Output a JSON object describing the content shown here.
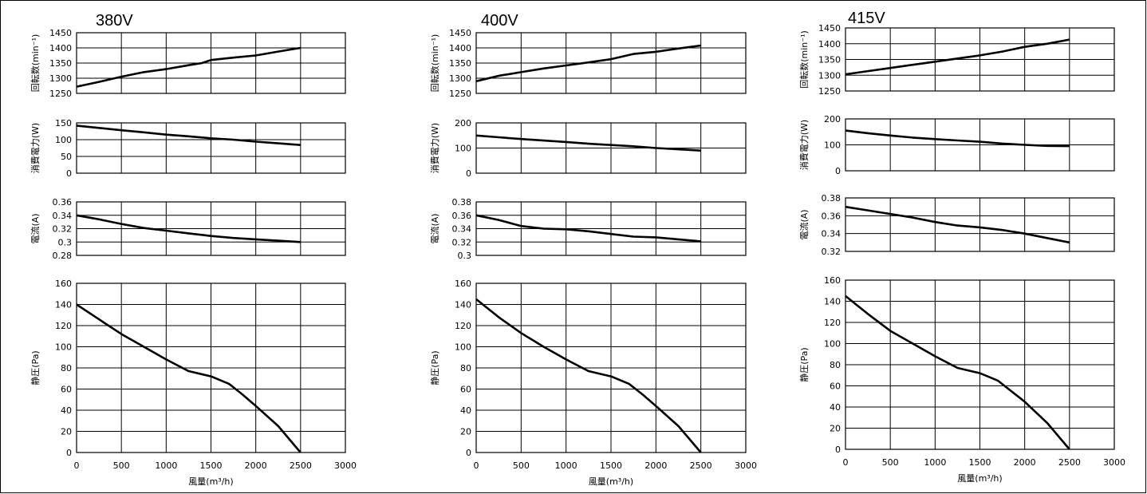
{
  "chart_data": [
    {
      "title": "380V",
      "type": "line",
      "xlabel": "風量(m³/h)",
      "xlim": [
        0,
        3000
      ],
      "xticks": [
        "0",
        "500",
        "1000",
        "1500",
        "2000",
        "2500",
        "3000"
      ],
      "subplots": [
        {
          "ylabel": "回転数(min⁻¹)",
          "ylim": [
            1250,
            1450
          ],
          "yticks": [
            "1250",
            "1300",
            "1350",
            "1400",
            "1450"
          ],
          "x": [
            0,
            250,
            500,
            750,
            1000,
            1250,
            1400,
            1500,
            1750,
            2000,
            2250,
            2500
          ],
          "y": [
            1272,
            1288,
            1305,
            1320,
            1330,
            1343,
            1350,
            1360,
            1368,
            1375,
            1388,
            1400
          ]
        },
        {
          "ylabel": "消費電力(W)",
          "ylim": [
            0,
            150
          ],
          "yticks": [
            "0",
            "50",
            "100",
            "150"
          ],
          "x": [
            0,
            250,
            500,
            750,
            1000,
            1250,
            1500,
            1750,
            2000,
            2250,
            2500
          ],
          "y": [
            142,
            135,
            128,
            122,
            115,
            110,
            104,
            100,
            94,
            89,
            84
          ]
        },
        {
          "ylabel": "電流(A)",
          "ylim": [
            0.28,
            0.36
          ],
          "yticks": [
            "0.28",
            "0.3",
            "0.32",
            "0.34",
            "0.36"
          ],
          "x": [
            0,
            250,
            500,
            750,
            1000,
            1250,
            1500,
            1750,
            2000,
            2250,
            2500
          ],
          "y": [
            0.34,
            0.334,
            0.327,
            0.321,
            0.317,
            0.313,
            0.309,
            0.306,
            0.304,
            0.302,
            0.3
          ]
        },
        {
          "ylabel": "静圧(Pa)",
          "ylim": [
            0,
            160
          ],
          "yticks": [
            "0",
            "20",
            "40",
            "60",
            "80",
            "100",
            "120",
            "140",
            "160"
          ],
          "x": [
            0,
            250,
            500,
            750,
            1000,
            1250,
            1500,
            1700,
            1850,
            2000,
            2250,
            2500
          ],
          "y": [
            140,
            126,
            112,
            100,
            88,
            77,
            72,
            65,
            55,
            44,
            25,
            0
          ]
        }
      ]
    },
    {
      "title": "400V",
      "type": "line",
      "xlabel": "風量(m³/h)",
      "xlim": [
        0,
        3000
      ],
      "xticks": [
        "0",
        "500",
        "1000",
        "1500",
        "2000",
        "2500",
        "3000"
      ],
      "subplots": [
        {
          "ylabel": "回転数(min⁻¹)",
          "ylim": [
            1250,
            1450
          ],
          "yticks": [
            "1250",
            "1300",
            "1350",
            "1400",
            "1450"
          ],
          "x": [
            0,
            250,
            500,
            750,
            1000,
            1250,
            1500,
            1750,
            2000,
            2250,
            2500
          ],
          "y": [
            1290,
            1308,
            1320,
            1332,
            1342,
            1352,
            1363,
            1380,
            1387,
            1398,
            1408
          ]
        },
        {
          "ylabel": "消費電力(W)",
          "ylim": [
            0,
            200
          ],
          "yticks": [
            "0",
            "100",
            "200"
          ],
          "x": [
            0,
            250,
            500,
            750,
            1000,
            1250,
            1500,
            1750,
            2000,
            2250,
            2500
          ],
          "y": [
            150,
            143,
            136,
            130,
            124,
            117,
            112,
            107,
            100,
            95,
            90
          ]
        },
        {
          "ylabel": "電流(A)",
          "ylim": [
            0.3,
            0.38
          ],
          "yticks": [
            "0.3",
            "0.32",
            "0.34",
            "0.36",
            "0.38"
          ],
          "x": [
            0,
            250,
            500,
            750,
            1000,
            1250,
            1500,
            1750,
            2000,
            2250,
            2500
          ],
          "y": [
            0.36,
            0.353,
            0.344,
            0.34,
            0.339,
            0.336,
            0.332,
            0.328,
            0.327,
            0.324,
            0.321
          ]
        },
        {
          "ylabel": "静圧(Pa)",
          "ylim": [
            0,
            160
          ],
          "yticks": [
            "0",
            "20",
            "40",
            "60",
            "80",
            "100",
            "120",
            "140",
            "160"
          ],
          "x": [
            0,
            250,
            500,
            750,
            1000,
            1250,
            1500,
            1700,
            1850,
            2000,
            2250,
            2500
          ],
          "y": [
            145,
            128,
            113,
            100,
            88,
            77,
            72,
            65,
            55,
            44,
            25,
            0
          ]
        }
      ]
    },
    {
      "title": "415V",
      "type": "line",
      "xlabel": "風量(m³/h)",
      "xlim": [
        0,
        3000
      ],
      "xticks": [
        "0",
        "500",
        "1000",
        "1500",
        "2000",
        "2500",
        "3000"
      ],
      "subplots": [
        {
          "ylabel": "回転数(min⁻¹)",
          "ylim": [
            1250,
            1450
          ],
          "yticks": [
            "1250",
            "1300",
            "1350",
            "1400",
            "1450"
          ],
          "x": [
            0,
            250,
            500,
            750,
            1000,
            1250,
            1500,
            1750,
            2000,
            2250,
            2500
          ],
          "y": [
            1303,
            1313,
            1323,
            1333,
            1343,
            1353,
            1363,
            1375,
            1390,
            1400,
            1413
          ]
        },
        {
          "ylabel": "消費電力(W)",
          "ylim": [
            0,
            200
          ],
          "yticks": [
            "0",
            "100",
            "200"
          ],
          "x": [
            0,
            250,
            500,
            750,
            1000,
            1250,
            1500,
            1750,
            2000,
            2250,
            2500
          ],
          "y": [
            155,
            145,
            136,
            128,
            122,
            117,
            112,
            105,
            100,
            96,
            95
          ]
        },
        {
          "ylabel": "電流(A)",
          "ylim": [
            0.32,
            0.38
          ],
          "yticks": [
            "0.32",
            "0.34",
            "0.36",
            "0.38"
          ],
          "x": [
            0,
            250,
            500,
            750,
            1000,
            1250,
            1500,
            1750,
            2000,
            2250,
            2500
          ],
          "y": [
            0.37,
            0.366,
            0.362,
            0.358,
            0.353,
            0.349,
            0.347,
            0.344,
            0.34,
            0.335,
            0.33
          ]
        },
        {
          "ylabel": "静圧(Pa)",
          "ylim": [
            0,
            160
          ],
          "yticks": [
            "0",
            "20",
            "40",
            "60",
            "80",
            "100",
            "120",
            "140",
            "160"
          ],
          "x": [
            0,
            250,
            500,
            750,
            1000,
            1250,
            1500,
            1700,
            1850,
            2000,
            2250,
            2500
          ],
          "y": [
            145,
            128,
            112,
            100,
            88,
            77,
            72,
            65,
            55,
            45,
            25,
            0
          ]
        }
      ]
    }
  ]
}
